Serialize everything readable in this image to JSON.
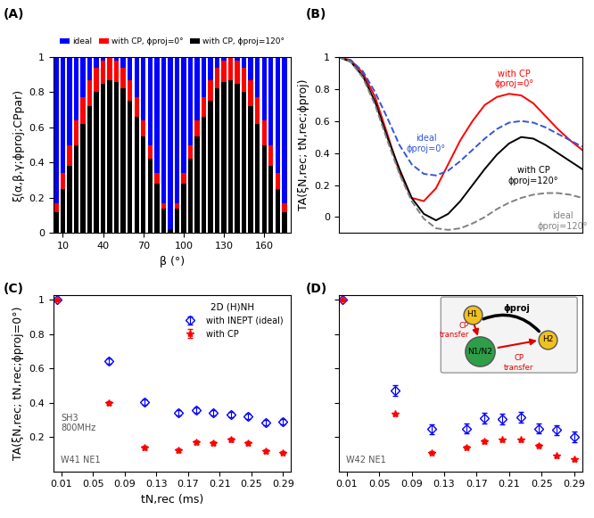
{
  "chart_data": [
    {
      "type": "bar",
      "panel_label": "(A)",
      "xlabel": "β (°)",
      "ylabel": "ξ(α,β,γ;ϕproj;CPpar)",
      "x": [
        5,
        10,
        15,
        20,
        25,
        30,
        35,
        40,
        45,
        50,
        55,
        60,
        65,
        70,
        75,
        80,
        85,
        90,
        95,
        100,
        105,
        110,
        115,
        120,
        125,
        130,
        135,
        140,
        145,
        150,
        155,
        160,
        165,
        170,
        175
      ],
      "series": [
        {
          "name": "ideal",
          "color": "#0000ff",
          "values": [
            1,
            1,
            1,
            1,
            1,
            1,
            1,
            1,
            1,
            1,
            1,
            1,
            1,
            1,
            1,
            1,
            1,
            1,
            1,
            1,
            1,
            1,
            1,
            1,
            1,
            1,
            1,
            1,
            1,
            1,
            1,
            1,
            1,
            1,
            1
          ]
        },
        {
          "name": "with CP, ϕproj=0°",
          "color": "#ff0000",
          "values": [
            0.17,
            0.34,
            0.5,
            0.64,
            0.77,
            0.87,
            0.94,
            0.98,
            1.0,
            0.98,
            0.94,
            0.87,
            0.77,
            0.64,
            0.5,
            0.34,
            0.17,
            0.0,
            0.17,
            0.34,
            0.5,
            0.64,
            0.77,
            0.87,
            0.94,
            0.98,
            1.0,
            0.98,
            0.94,
            0.87,
            0.77,
            0.64,
            0.5,
            0.34,
            0.17
          ]
        },
        {
          "name": "with CP, ϕproj=120°",
          "color": "#000000",
          "values": [
            0.12,
            0.25,
            0.38,
            0.5,
            0.62,
            0.72,
            0.8,
            0.85,
            0.87,
            0.86,
            0.82,
            0.75,
            0.66,
            0.55,
            0.42,
            0.28,
            0.14,
            0.02,
            0.14,
            0.28,
            0.42,
            0.55,
            0.66,
            0.75,
            0.82,
            0.86,
            0.87,
            0.85,
            0.8,
            0.72,
            0.62,
            0.5,
            0.38,
            0.25,
            0.12
          ]
        }
      ],
      "xlim": [
        3,
        180
      ],
      "xticks": [
        10,
        40,
        70,
        100,
        130,
        160
      ],
      "ylim": [
        0,
        1
      ],
      "yticks": [
        0,
        0.2,
        0.4,
        0.6,
        0.8,
        1
      ],
      "legend": "upper center"
    },
    {
      "type": "line",
      "panel_label": "(B)",
      "ylabel": "TA(ξN,rec; tN,rec;ϕproj)",
      "x": [
        0,
        0.05,
        0.1,
        0.15,
        0.2,
        0.25,
        0.3,
        0.35,
        0.4,
        0.45,
        0.5,
        0.55,
        0.6,
        0.65,
        0.7,
        0.75,
        0.8,
        0.85,
        0.9,
        0.95,
        1.0
      ],
      "series": [
        {
          "name": "with CP\nϕproj=0°",
          "color": "#ff0000",
          "line_style": "solid",
          "values": [
            1,
            0.98,
            0.9,
            0.75,
            0.52,
            0.28,
            0.12,
            0.1,
            0.18,
            0.33,
            0.48,
            0.6,
            0.7,
            0.75,
            0.77,
            0.76,
            0.71,
            0.63,
            0.55,
            0.48,
            0.42
          ]
        },
        {
          "name": "ideal\nϕproj=0°",
          "color": "#3355dd",
          "line_style": "dashed",
          "values": [
            1,
            0.98,
            0.91,
            0.78,
            0.62,
            0.45,
            0.33,
            0.27,
            0.26,
            0.29,
            0.35,
            0.42,
            0.49,
            0.55,
            0.59,
            0.6,
            0.59,
            0.56,
            0.52,
            0.48,
            0.44
          ]
        },
        {
          "name": "with CP\nϕproj=120°",
          "color": "#000000",
          "line_style": "solid",
          "values": [
            1,
            0.97,
            0.88,
            0.72,
            0.5,
            0.3,
            0.12,
            0.02,
            -0.02,
            0.02,
            0.1,
            0.2,
            0.3,
            0.39,
            0.46,
            0.5,
            0.49,
            0.45,
            0.4,
            0.35,
            0.3
          ]
        },
        {
          "name": "ideal\nϕproj=120°",
          "color": "#808080",
          "line_style": "dashed",
          "values": [
            1,
            0.97,
            0.87,
            0.7,
            0.48,
            0.27,
            0.1,
            -0.01,
            -0.07,
            -0.08,
            -0.07,
            -0.04,
            0,
            0.05,
            0.09,
            0.12,
            0.14,
            0.15,
            0.15,
            0.14,
            0.12
          ]
        }
      ],
      "xlim": [
        0,
        1
      ],
      "xticks": [],
      "ylim": [
        -0.1,
        1
      ],
      "yticks": [
        0,
        0.2,
        0.4,
        0.6,
        0.8,
        1
      ],
      "tick_labels": "y"
    },
    {
      "type": "scatter",
      "panel_label": "(C)",
      "xlabel": "tN,rec (ms)",
      "ylabel": "TA(ξN,rec; tN,rec;ϕproj=0°)",
      "legend_title": "2D (H)NH",
      "annotations": [
        "SH3\n800MHz",
        "W41 NE1"
      ],
      "x": [
        0.005,
        0.07,
        0.115,
        0.158,
        0.18,
        0.202,
        0.224,
        0.246,
        0.268,
        0.29
      ],
      "series": [
        {
          "name": "with INEPT (ideal)",
          "color": "#0000ff",
          "marker": "diamond",
          "values": [
            1,
            0.64,
            0.405,
            0.34,
            0.355,
            0.34,
            0.33,
            0.32,
            0.285,
            0.29
          ],
          "errors": [
            0,
            0.015,
            0.015,
            0.015,
            0.015,
            0.015,
            0.015,
            0.015,
            0.015,
            0.015
          ]
        },
        {
          "name": "with CP",
          "color": "#ff0000",
          "marker": "star",
          "values": [
            1,
            0.4,
            0.14,
            0.125,
            0.17,
            0.165,
            0.185,
            0.165,
            0.12,
            0.11
          ],
          "errors": [
            0,
            0.01,
            0.01,
            0.01,
            0.01,
            0.01,
            0.01,
            0.01,
            0.01,
            0.01
          ]
        }
      ],
      "xlim": [
        0,
        0.3
      ],
      "xticks": [
        0.01,
        0.05,
        0.09,
        0.13,
        0.17,
        0.21,
        0.25,
        0.29
      ],
      "ylim": [
        0,
        1.025
      ],
      "yticks": [
        0.2,
        0.4,
        0.6,
        0.8,
        1
      ],
      "legend": "upper right"
    },
    {
      "type": "scatter",
      "panel_label": "(D)",
      "annotations": [
        "W42 NE1"
      ],
      "diagram": {
        "nodes": [
          "H1",
          "N1/N2",
          "H2"
        ],
        "edge_labels": [
          "CP\ntransfer",
          "CP\ntransfer"
        ],
        "angle_label": "ϕproj"
      },
      "x": [
        0.005,
        0.07,
        0.115,
        0.158,
        0.18,
        0.202,
        0.224,
        0.246,
        0.268,
        0.29
      ],
      "series": [
        {
          "name": "with INEPT (ideal)",
          "color": "#0000ff",
          "marker": "diamond",
          "values": [
            1,
            0.47,
            0.245,
            0.25,
            0.31,
            0.305,
            0.315,
            0.25,
            0.24,
            0.2
          ],
          "errors": [
            0,
            0.03,
            0.03,
            0.03,
            0.03,
            0.03,
            0.03,
            0.03,
            0.03,
            0.03
          ]
        },
        {
          "name": "with CP",
          "color": "#ff0000",
          "marker": "star",
          "values": [
            1,
            0.335,
            0.11,
            0.14,
            0.175,
            0.185,
            0.185,
            0.15,
            0.09,
            0.07
          ],
          "errors": [
            0,
            0.008,
            0.008,
            0.008,
            0.008,
            0.008,
            0.008,
            0.008,
            0.008,
            0.008
          ]
        }
      ],
      "xlim": [
        0,
        0.3
      ],
      "xticks": [
        0.01,
        0.05,
        0.09,
        0.13,
        0.17,
        0.21,
        0.25,
        0.29
      ],
      "ylim": [
        0,
        1.025
      ],
      "yticks": [
        0.2,
        0.4,
        0.6,
        0.8,
        1
      ],
      "tick_labels": "x"
    }
  ]
}
